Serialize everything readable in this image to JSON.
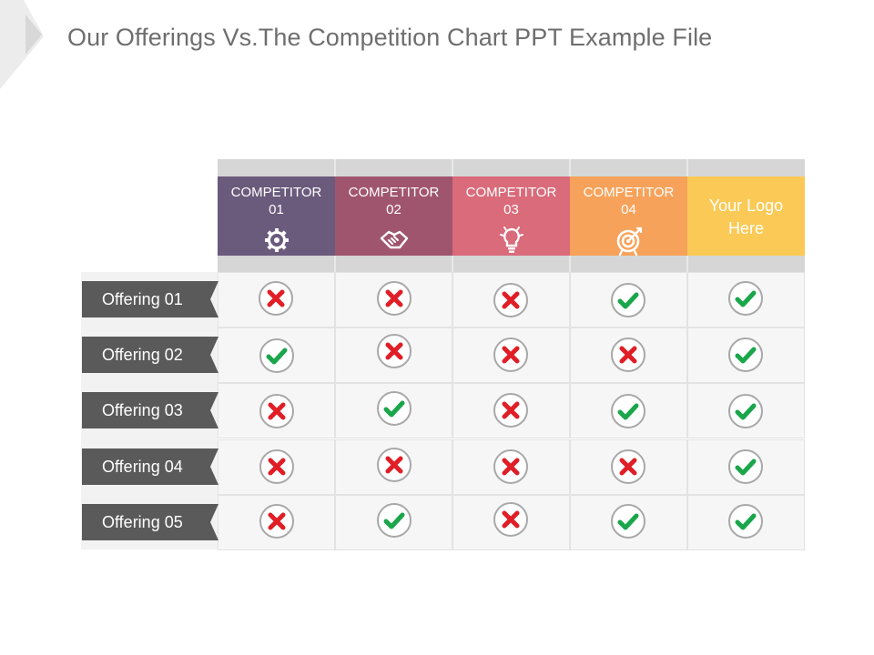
{
  "title": "Our Offerings Vs.The Competition Chart PPT Example File",
  "columns": [
    {
      "label": "COMPETITOR\n01",
      "color": "#6a5a7c",
      "icon": "gear-icon"
    },
    {
      "label": "COMPETITOR\n02",
      "color": "#a0556f",
      "icon": "handshake-icon"
    },
    {
      "label": "COMPETITOR\n03",
      "color": "#d96b7a",
      "icon": "lightbulb-icon"
    },
    {
      "label": "COMPETITOR\n04",
      "color": "#f7a25a",
      "icon": "target-icon"
    },
    {
      "label": "Your Logo\nHere",
      "color": "#fbc955",
      "icon": null
    }
  ],
  "rows": [
    {
      "label": "Offering 01",
      "marks": [
        false,
        false,
        false,
        true,
        true
      ]
    },
    {
      "label": "Offering 02",
      "marks": [
        true,
        false,
        false,
        false,
        true
      ]
    },
    {
      "label": "Offering 03",
      "marks": [
        false,
        true,
        false,
        true,
        true
      ]
    },
    {
      "label": "Offering 04",
      "marks": [
        false,
        false,
        false,
        false,
        true
      ]
    },
    {
      "label": "Offering 05",
      "marks": [
        false,
        true,
        false,
        true,
        true
      ]
    }
  ],
  "colors": {
    "check": "#1aa64a",
    "cross": "#e01e26",
    "label_bg": "#5a5a5a"
  }
}
